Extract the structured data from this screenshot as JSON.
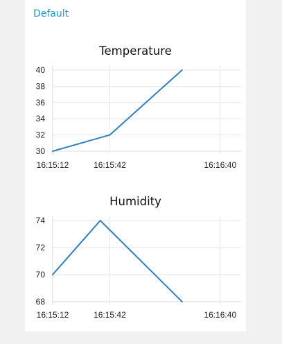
{
  "group": {
    "title": "Default"
  },
  "chart_data": [
    {
      "type": "line",
      "title": "Temperature",
      "x": [
        "16:15:12",
        "16:15:42",
        "16:16:20"
      ],
      "x_seconds": [
        0,
        30,
        68
      ],
      "x_ticks": [
        "16:15:12",
        "16:15:42",
        "16:16:40"
      ],
      "x_tick_seconds": [
        0,
        30,
        88
      ],
      "xlim_seconds": [
        0,
        99
      ],
      "series": [
        {
          "values": [
            30,
            32,
            40
          ],
          "color": "#2f7fc1"
        }
      ],
      "y_ticks": [
        30,
        32,
        34,
        36,
        38,
        40
      ],
      "ylim": [
        30,
        40
      ],
      "grid": true
    },
    {
      "type": "line",
      "title": "Humidity",
      "x": [
        "16:15:12",
        "16:15:37",
        "16:16:20"
      ],
      "x_seconds": [
        0,
        25,
        68
      ],
      "x_ticks": [
        "16:15:12",
        "16:15:42",
        "16:16:40"
      ],
      "x_tick_seconds": [
        0,
        30,
        88
      ],
      "xlim_seconds": [
        0,
        99
      ],
      "series": [
        {
          "values": [
            70,
            74,
            68
          ],
          "color": "#2f7fc1"
        }
      ],
      "y_ticks": [
        68,
        70,
        72,
        74
      ],
      "ylim": [
        68,
        74
      ],
      "grid": true
    }
  ]
}
